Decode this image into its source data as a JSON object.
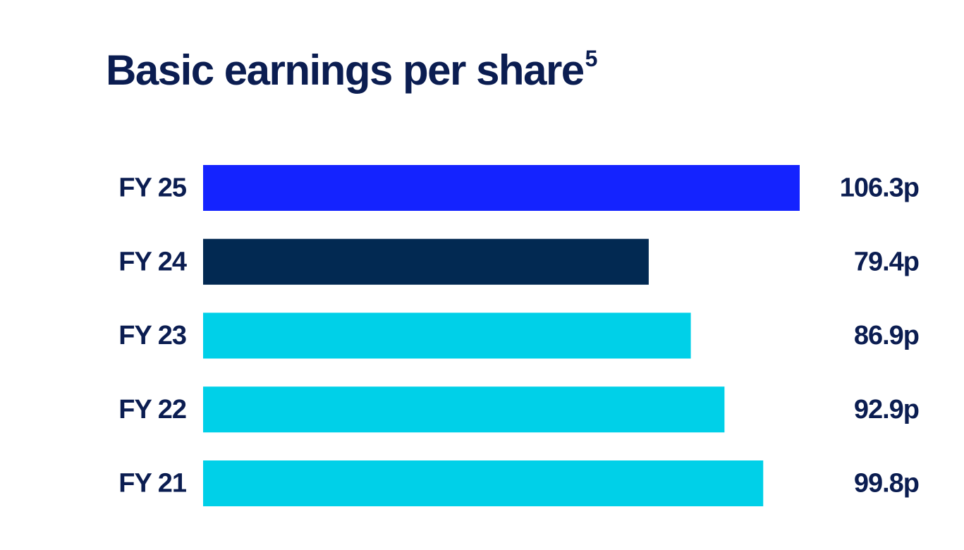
{
  "chart_data": {
    "type": "bar",
    "orientation": "horizontal",
    "title": "Basic earnings per share",
    "title_superscript": "5",
    "categories": [
      "FY 25",
      "FY 24",
      "FY 23",
      "FY 22",
      "FY 21"
    ],
    "values": [
      106.3,
      79.4,
      86.9,
      92.9,
      99.8
    ],
    "value_labels": [
      "106.3p",
      "79.4p",
      "86.9p",
      "92.9p",
      "99.8p"
    ],
    "unit": "p",
    "bar_colors": [
      "#1423ff",
      "#022952",
      "#00d0e8",
      "#00d0e8",
      "#00d0e8"
    ],
    "xlim": [
      0,
      106.3
    ],
    "grid": false,
    "legend": "none"
  }
}
